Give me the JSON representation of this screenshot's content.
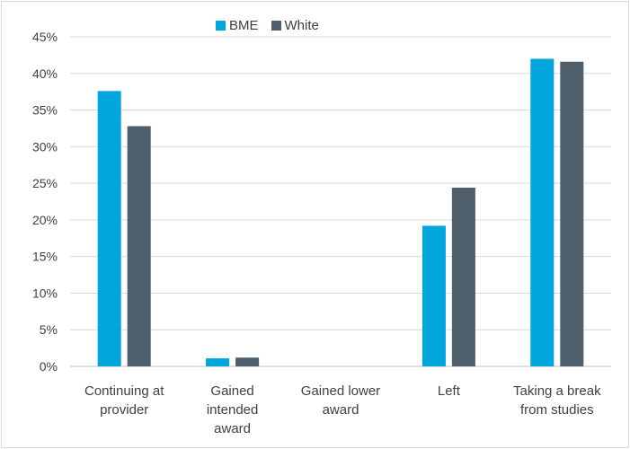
{
  "chart_data": {
    "type": "bar",
    "categories": [
      [
        "Continuing at",
        "provider"
      ],
      [
        "Gained",
        "intended",
        "award"
      ],
      [
        "Gained lower",
        "award"
      ],
      [
        "Left"
      ],
      [
        "Taking a break",
        "from studies"
      ]
    ],
    "series": [
      {
        "name": "BME",
        "color": "#00a6dc",
        "values": [
          37.6,
          1.1,
          0,
          19.2,
          42.0
        ]
      },
      {
        "name": "White",
        "color": "#4f5f6b",
        "values": [
          32.8,
          1.2,
          0,
          24.4,
          41.6
        ]
      }
    ],
    "ylim": [
      0,
      45
    ],
    "yticks": [
      {
        "value": 0,
        "label": "0%"
      },
      {
        "value": 5,
        "label": "5%"
      },
      {
        "value": 10,
        "label": "10%"
      },
      {
        "value": 15,
        "label": "15%"
      },
      {
        "value": 20,
        "label": "20%"
      },
      {
        "value": 25,
        "label": "25%"
      },
      {
        "value": 30,
        "label": "30%"
      },
      {
        "value": 35,
        "label": "35%"
      },
      {
        "value": 40,
        "label": "40%"
      },
      {
        "value": 45,
        "label": "45%"
      }
    ],
    "grid": true,
    "legend_position": "top"
  }
}
